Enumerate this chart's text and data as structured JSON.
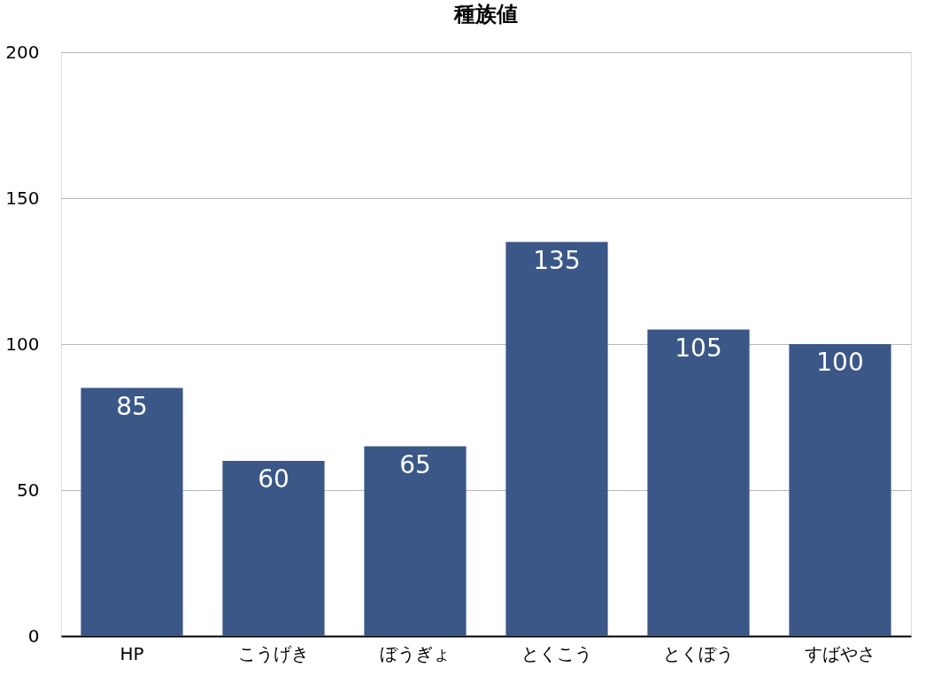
{
  "chart_data": {
    "type": "bar",
    "title": "種族値",
    "categories": [
      "HP",
      "こうげき",
      "ぼうぎょ",
      "とくこう",
      "とくぼう",
      "すばやさ"
    ],
    "values": [
      85,
      60,
      65,
      135,
      105,
      100
    ],
    "color": "#3a5788",
    "ylim": [
      0,
      200
    ],
    "yticks": [
      0,
      50,
      100,
      150,
      200
    ],
    "grid": "y",
    "data_labels": true
  }
}
